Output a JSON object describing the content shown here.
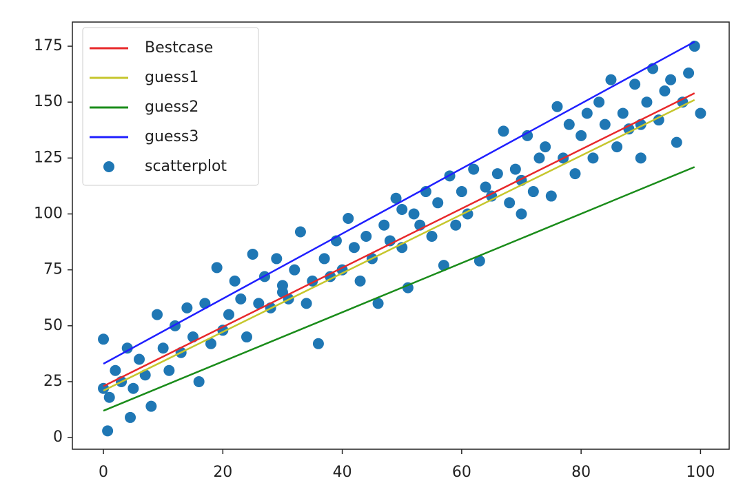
{
  "chart_data": {
    "type": "scatter",
    "legend": "upper left",
    "xlim": [
      -5.2,
      104.8
    ],
    "ylim": [
      -5.2,
      185.8
    ],
    "xticks": [
      0,
      20,
      40,
      60,
      80,
      100
    ],
    "yticks": [
      0,
      25,
      50,
      75,
      100,
      125,
      150,
      175
    ],
    "series": [
      {
        "name": "Bestcase",
        "type": "line",
        "color": "#e8282a",
        "x": [
          0,
          99
        ],
        "values": [
          23,
          154
        ]
      },
      {
        "name": "guess1",
        "type": "line",
        "color": "#c6c62c",
        "x": [
          0,
          99
        ],
        "values": [
          21,
          151
        ]
      },
      {
        "name": "guess2",
        "type": "line",
        "color": "#1a8c1a",
        "x": [
          0,
          99
        ],
        "values": [
          12,
          121
        ]
      },
      {
        "name": "guess3",
        "type": "line",
        "color": "#1f1fff",
        "x": [
          0,
          99
        ],
        "values": [
          33,
          177
        ]
      },
      {
        "name": "scatterplot",
        "type": "scatter",
        "color": "#1f77b4",
        "x": [
          0,
          1,
          2,
          3,
          4,
          5,
          6,
          7,
          8,
          9,
          10,
          11,
          12,
          13,
          14,
          15,
          16,
          17,
          18,
          19,
          20,
          21,
          22,
          23,
          24,
          25,
          26,
          27,
          28,
          29,
          30,
          31,
          32,
          33,
          34,
          35,
          36,
          37,
          38,
          39,
          40,
          41,
          42,
          43,
          44,
          45,
          46,
          47,
          48,
          49,
          50,
          51,
          52,
          53,
          54,
          55,
          56,
          57,
          58,
          59,
          60,
          61,
          62,
          63,
          64,
          65,
          66,
          67,
          68,
          69,
          70,
          71,
          72,
          73,
          74,
          75,
          76,
          77,
          78,
          79,
          80,
          81,
          82,
          83,
          84,
          85,
          86,
          87,
          88,
          89,
          90,
          91,
          92,
          93,
          94,
          95,
          96,
          97,
          98,
          99,
          0,
          0.7,
          4.5,
          100,
          50,
          30,
          70,
          90
        ],
        "values": [
          44,
          18,
          30,
          25,
          40,
          22,
          35,
          28,
          14,
          55,
          40,
          30,
          50,
          38,
          58,
          45,
          25,
          60,
          42,
          76,
          48,
          55,
          70,
          62,
          45,
          82,
          60,
          72,
          58,
          80,
          65,
          62,
          75,
          92,
          60,
          70,
          42,
          80,
          72,
          88,
          75,
          98,
          85,
          70,
          90,
          80,
          60,
          95,
          88,
          107,
          85,
          67,
          100,
          95,
          110,
          90,
          105,
          77,
          117,
          95,
          110,
          100,
          120,
          79,
          112,
          108,
          118,
          137,
          105,
          120,
          115,
          135,
          110,
          125,
          130,
          108,
          148,
          125,
          140,
          118,
          135,
          145,
          125,
          150,
          140,
          160,
          130,
          145,
          138,
          158,
          125,
          150,
          165,
          142,
          155,
          160,
          132,
          150,
          163,
          175,
          22,
          3,
          9,
          145,
          102,
          68,
          100,
          140
        ]
      }
    ]
  }
}
